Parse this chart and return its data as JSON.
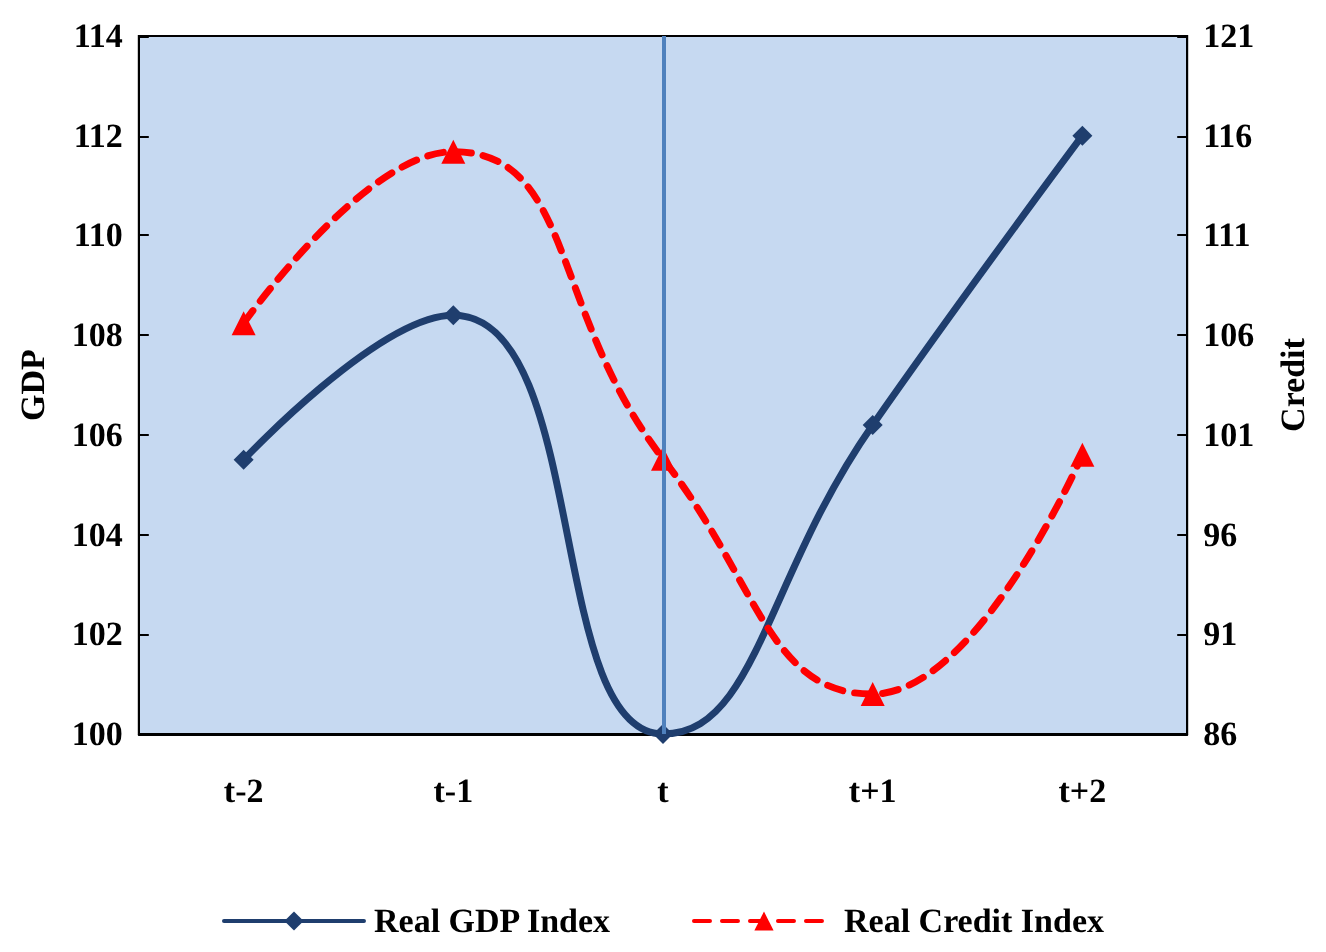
{
  "chart_data": {
    "type": "line",
    "ylabel": "GDP",
    "y2label": "Credit",
    "categories": [
      "t-2",
      "t-1",
      "t",
      "t+1",
      "t+2"
    ],
    "series": [
      {
        "name": "Real GDP Index",
        "color": "#1f3e6e",
        "values": [
          105.5,
          108.4,
          100,
          106.2,
          112
        ],
        "marker": "diamond",
        "line_style": "solid"
      },
      {
        "name": "Real Credit Index",
        "color": "#ff0000",
        "values": [
          106.6,
          115.2,
          99.8,
          88,
          100
        ],
        "axis": "y2",
        "marker": "triangle",
        "line_style": "dashed"
      }
    ],
    "ylim": [
      100,
      114
    ],
    "yticks": [
      100,
      102,
      104,
      106,
      108,
      110,
      112,
      114
    ],
    "y2lim": [
      86,
      121
    ],
    "y2ticks": [
      86,
      91,
      96,
      101,
      106,
      111,
      116,
      121
    ],
    "ref_lines": [
      {
        "axis": "x",
        "value": "t",
        "color": "#4f81bd",
        "line_style": "solid"
      }
    ],
    "grid": false,
    "legend": "bottom"
  }
}
